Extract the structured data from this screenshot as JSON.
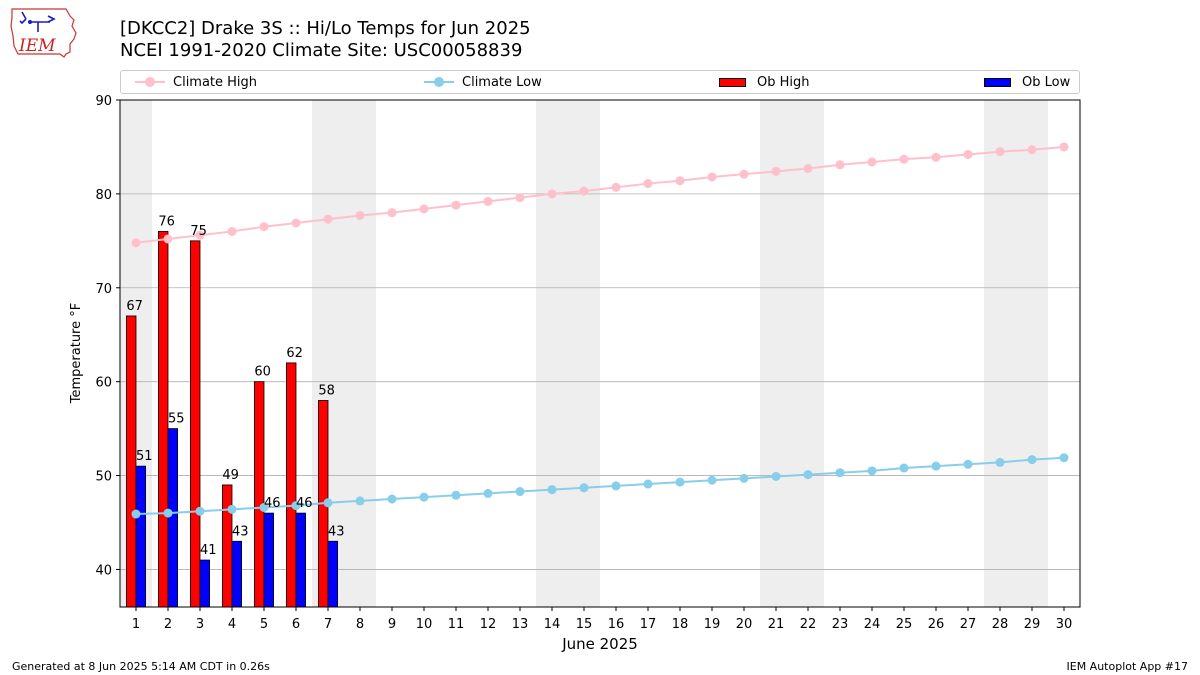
{
  "header": {
    "title_line1": "[DKCC2] Drake 3S :: Hi/Lo Temps for Jun 2025",
    "title_line2": "NCEI 1991-2020 Climate Site: USC00058839",
    "logo_text": "IEM"
  },
  "legend": {
    "climate_high": "Climate High",
    "climate_low": "Climate Low",
    "ob_high": "Ob High",
    "ob_low": "Ob Low"
  },
  "colors": {
    "climate_high": "#ffc0cb",
    "climate_low": "#87ceeb",
    "ob_high": "#ff0000",
    "ob_low": "#0000ff",
    "weekend_band": "#eeeeee",
    "grid": "#b0b0b0"
  },
  "chart_data": {
    "type": "bar",
    "xlabel": "June 2025",
    "ylabel": "Temperature °F",
    "ylim": [
      36,
      90
    ],
    "yticks": [
      40,
      50,
      60,
      70,
      80,
      90
    ],
    "xlim": [
      0.5,
      30.5
    ],
    "x": [
      1,
      2,
      3,
      4,
      5,
      6,
      7,
      8,
      9,
      10,
      11,
      12,
      13,
      14,
      15,
      16,
      17,
      18,
      19,
      20,
      21,
      22,
      23,
      24,
      25,
      26,
      27,
      28,
      29,
      30
    ],
    "grid": "horizontal",
    "legend_position": "top",
    "weekend_days": [
      1,
      7,
      8,
      14,
      15,
      21,
      22,
      28,
      29
    ],
    "series": [
      {
        "name": "Ob High",
        "type": "bar",
        "x": [
          1,
          2,
          3,
          4,
          5,
          6,
          7
        ],
        "values": [
          67,
          76,
          75,
          49,
          60,
          62,
          58
        ]
      },
      {
        "name": "Ob Low",
        "type": "bar",
        "x": [
          1,
          2,
          3,
          4,
          5,
          6,
          7
        ],
        "values": [
          51,
          55,
          41,
          43,
          46,
          46,
          43
        ]
      },
      {
        "name": "Climate High",
        "type": "line",
        "values": [
          74.8,
          75.2,
          75.6,
          76.0,
          76.5,
          76.9,
          77.3,
          77.7,
          78.0,
          78.4,
          78.8,
          79.2,
          79.6,
          80.0,
          80.3,
          80.7,
          81.1,
          81.4,
          81.8,
          82.1,
          82.4,
          82.7,
          83.1,
          83.4,
          83.7,
          83.9,
          84.2,
          84.5,
          84.7,
          85.0
        ]
      },
      {
        "name": "Climate Low",
        "type": "line",
        "values": [
          45.9,
          46.0,
          46.2,
          46.4,
          46.6,
          46.8,
          47.1,
          47.3,
          47.5,
          47.7,
          47.9,
          48.1,
          48.3,
          48.5,
          48.7,
          48.9,
          49.1,
          49.3,
          49.5,
          49.7,
          49.9,
          50.1,
          50.3,
          50.5,
          50.8,
          51.0,
          51.2,
          51.4,
          51.7,
          51.9
        ]
      }
    ]
  },
  "footer": {
    "left": "Generated at 8 Jun 2025 5:14 AM CDT in 0.26s",
    "right": "IEM Autoplot App #17"
  }
}
